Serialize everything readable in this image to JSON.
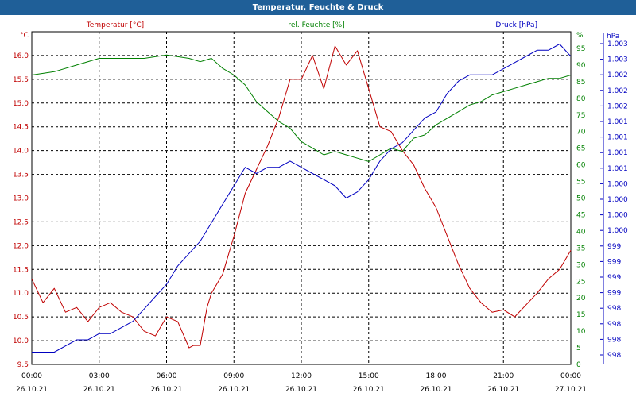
{
  "window": {
    "title": "Temperatur, Feuchte & Druck"
  },
  "colors": {
    "temperature": "#c00000",
    "humidity": "#008000",
    "pressure": "#0000c0",
    "titlebar": "#1f5f98"
  },
  "chart_data": {
    "type": "line",
    "grid": true,
    "x_ticks": [
      {
        "time": "00:00",
        "date": "26.10.21"
      },
      {
        "time": "03:00",
        "date": "26.10.21"
      },
      {
        "time": "06:00",
        "date": "26.10.21"
      },
      {
        "time": "09:00",
        "date": "26.10.21"
      },
      {
        "time": "12:00",
        "date": "26.10.21"
      },
      {
        "time": "15:00",
        "date": "26.10.21"
      },
      {
        "time": "18:00",
        "date": "26.10.21"
      },
      {
        "time": "21:00",
        "date": "26.10.21"
      },
      {
        "time": "00:00",
        "date": "27.10.21"
      }
    ],
    "axes": {
      "temperature": {
        "label": "Temperatur [°C]",
        "unit": "°C",
        "ylim": [
          9.5,
          16.5
        ],
        "ticks": [
          "9.5",
          "10.0",
          "10.5",
          "11.0",
          "11.5",
          "12.0",
          "12.5",
          "13.0",
          "13.5",
          "14.0",
          "14.5",
          "15.0",
          "15.5",
          "16.0"
        ]
      },
      "humidity": {
        "label": "rel. Feuchte [%]",
        "unit": "%",
        "ylim": [
          0,
          100
        ],
        "ticks": [
          "0",
          "5",
          "10",
          "15",
          "20",
          "25",
          "30",
          "35",
          "40",
          "45",
          "50",
          "55",
          "60",
          "65",
          "70",
          "75",
          "80",
          "85",
          "90",
          "95"
        ]
      },
      "pressure": {
        "label": "Druck [hPa]",
        "unit": "hPa",
        "ylim": [
          997.9,
          1003.3
        ],
        "ticks": [
          "998",
          "998",
          "998",
          "998",
          "999",
          "999",
          "999",
          "999",
          "1.000",
          "1.000",
          "1.000",
          "1.000",
          "1.001",
          "1.001",
          "1.001",
          "1.001",
          "1.002",
          "1.002",
          "1.002",
          "1.003",
          "1.003"
        ]
      }
    },
    "series": [
      {
        "name": "Temperatur [°C]",
        "axis": "temperature",
        "x": [
          0,
          0.5,
          1,
          1.5,
          2,
          2.5,
          3,
          3.5,
          4,
          4.5,
          5,
          5.5,
          6,
          6.5,
          7,
          7.2,
          7.5,
          7.8,
          8,
          8.5,
          9,
          9.5,
          10,
          10.5,
          11,
          11.5,
          12,
          12.5,
          13,
          13.5,
          14,
          14.5,
          15,
          15.5,
          16,
          16.5,
          17,
          17.5,
          18,
          18.5,
          19,
          19.5,
          20,
          20.5,
          21,
          21.5,
          22,
          22.5,
          23,
          23.5,
          24
        ],
        "values": [
          11.3,
          10.8,
          11.1,
          10.6,
          10.7,
          10.4,
          10.7,
          10.8,
          10.6,
          10.5,
          10.2,
          10.1,
          10.5,
          10.4,
          9.85,
          9.9,
          9.9,
          10.7,
          11.0,
          11.4,
          12.2,
          13.1,
          13.6,
          14.1,
          14.7,
          15.5,
          15.5,
          16.0,
          15.3,
          16.2,
          15.8,
          16.1,
          15.3,
          14.5,
          14.4,
          14.0,
          13.7,
          13.2,
          12.8,
          12.2,
          11.6,
          11.1,
          10.8,
          10.6,
          10.65,
          10.5,
          10.75,
          11.0,
          11.3,
          11.5,
          11.9
        ]
      },
      {
        "name": "rel. Feuchte [%]",
        "axis": "humidity",
        "x": [
          0,
          1,
          2,
          3,
          4,
          5,
          6,
          7,
          7.5,
          8,
          8.5,
          9,
          9.5,
          10,
          10.5,
          11,
          11.5,
          12,
          12.5,
          13,
          13.5,
          14,
          14.5,
          15,
          15.5,
          16,
          16.5,
          17,
          17.5,
          18,
          18.5,
          19,
          19.5,
          20,
          20.5,
          21,
          21.5,
          22,
          22.5,
          23,
          23.5,
          24
        ],
        "values": [
          87,
          88,
          90,
          92,
          92,
          92,
          93,
          92,
          91,
          92,
          89,
          87,
          84,
          79,
          76,
          73,
          71,
          67,
          65,
          63,
          64,
          63,
          62,
          61,
          63,
          65,
          64,
          68,
          69,
          72,
          74,
          76,
          78,
          79,
          81,
          82,
          83,
          84,
          85,
          86,
          86,
          87
        ]
      },
      {
        "name": "Druck [hPa]",
        "axis": "pressure",
        "x": [
          0,
          1,
          1.5,
          2,
          2.5,
          3,
          3.5,
          4,
          4.5,
          5,
          5.5,
          6,
          6.5,
          7,
          7.5,
          8,
          8.5,
          9,
          9.5,
          10,
          10.5,
          11,
          11.5,
          12,
          12.5,
          13,
          13.5,
          14,
          14.5,
          15,
          15.5,
          16,
          16.5,
          17,
          17.5,
          18,
          18.5,
          19,
          19.5,
          20,
          20.5,
          21,
          21.5,
          22,
          22.5,
          23,
          23.5,
          24
        ],
        "values": [
          998.1,
          998.1,
          998.2,
          998.3,
          998.3,
          998.4,
          998.4,
          998.5,
          998.6,
          998.8,
          999.0,
          999.2,
          999.5,
          999.7,
          999.9,
          1000.2,
          1000.5,
          1000.8,
          1001.1,
          1001.0,
          1001.1,
          1001.1,
          1001.2,
          1001.1,
          1001.0,
          1000.9,
          1000.8,
          1000.6,
          1000.7,
          1000.9,
          1001.2,
          1001.4,
          1001.5,
          1001.7,
          1001.9,
          1002.0,
          1002.3,
          1002.5,
          1002.6,
          1002.6,
          1002.6,
          1002.7,
          1002.8,
          1002.9,
          1003.0,
          1003.0,
          1003.1,
          1002.9
        ]
      }
    ]
  }
}
